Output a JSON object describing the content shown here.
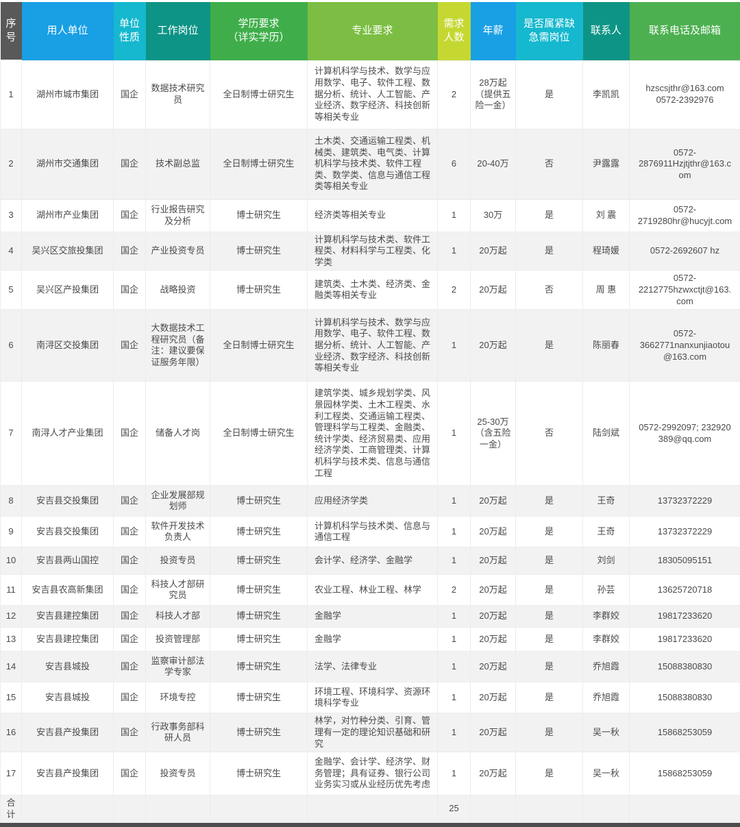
{
  "table": {
    "columns": [
      {
        "label": "序\n号",
        "color": "#595959"
      },
      {
        "label": "用人单位",
        "color": "#189fe4"
      },
      {
        "label": "单位\n性质",
        "color": "#15b8ce"
      },
      {
        "label": "工作岗位",
        "color": "#0e9486"
      },
      {
        "label": "学历要求\n（详实学历）",
        "color": "#3fae4a"
      },
      {
        "label": "专业要求",
        "color": "#7cbe43"
      },
      {
        "label": "需求\n人数",
        "color": "#c5d831"
      },
      {
        "label": "年薪",
        "color": "#189fe4"
      },
      {
        "label": "是否属紧缺\n急需岗位",
        "color": "#15b8ce"
      },
      {
        "label": "联系人",
        "color": "#0e9486"
      },
      {
        "label": "联系电话及邮箱",
        "color": "#4cb050"
      }
    ],
    "rows": [
      [
        "1",
        "湖州市城市集团",
        "国企",
        "数据技术研究员",
        "全日制博士研究生",
        "计算机科学与技术、数学与应用数学、电子、软件工程、数据分析、统计、人工智能、产业经济、数字经济、科技创新等相关专业",
        "2",
        "28万起\n（提供五险一金）",
        "是",
        "李凯凯",
        "hzscsjthr@163.com\n0572-2392976"
      ],
      [
        "2",
        "湖州市交通集团",
        "国企",
        "技术副总监",
        "全日制博士研究生",
        "土木类、交通运输工程类、机械类、建筑类、电气类、计算机科学与技术类、软件工程类、数学类、信息与通信工程类等相关专业",
        "6",
        "20-40万",
        "否",
        "尹露露",
        "0572-\n2876911Hzjtjthr@163.com"
      ],
      [
        "3",
        "湖州市产业集团",
        "国企",
        "行业报告研究及分析",
        "博士研究生",
        "经济类等相关专业",
        "1",
        "30万",
        "是",
        "刘 震",
        "0572-\n2719280hr@hucyjt.com"
      ],
      [
        "4",
        "吴兴区交旅投集团",
        "国企",
        "产业投资专员",
        "博士研究生",
        "计算机科学与技术类、软件工程类、材料科学与工程类、化学类",
        "1",
        "20万起",
        "是",
        "程琦媛",
        "0572-2692607 hz"
      ],
      [
        "5",
        "吴兴区产投集团",
        "国企",
        "战略投资",
        "博士研究生",
        "建筑类、土木类、经济类、金融类等相关专业",
        "2",
        "20万起",
        "否",
        "周 惠",
        "0572-\n2212775hzwxctjt@163.com"
      ],
      [
        "6",
        "南浔区交投集团",
        "国企",
        "大数据技术工程研究员（备注：建议要保证服务年限）",
        "全日制博士研究生",
        "计算机科学与技术、数学与应用数学、电子、软件工程、数据分析、统计、人工智能、产业经济、数字经济、科技创新等相关专业",
        "1",
        "20万起",
        "是",
        "陈丽春",
        "0572-\n3662771nanxunjiaotou@163.com"
      ],
      [
        "7",
        "南浔人才产业集团",
        "国企",
        "储备人才岗",
        "全日制博士研究生",
        "建筑学类、城乡规划学类、风景园林学类、土木工程类、水利工程类、交通运输工程类、管理科学与工程类、金融类、统计学类、经济贸易类、应用经济学类、工商管理类、计算机科学与技术类、信息与通信工程",
        "1",
        "25-30万\n（含五险一金）",
        "否",
        "陆剑斌",
        "0572-2992097; 232920389@qq.com"
      ],
      [
        "8",
        "安吉县交投集团",
        "国企",
        "企业发展部规划师",
        "博士研究生",
        "应用经济学类",
        "1",
        "20万起",
        "是",
        "王奇",
        "13732372229"
      ],
      [
        "9",
        "安吉县交投集团",
        "国企",
        "软件开发技术负责人",
        "博士研究生",
        "计算机科学与技术类、信息与通信工程",
        "1",
        "20万起",
        "是",
        "王奇",
        "13732372229"
      ],
      [
        "10",
        "安吉县两山国控",
        "国企",
        "投资专员",
        "博士研究生",
        "会计学、经济学、金融学",
        "1",
        "20万起",
        "是",
        "刘剑",
        "18305095151"
      ],
      [
        "11",
        "安吉县农高新集团",
        "国企",
        "科技人才部研究员",
        "博士研究生",
        "农业工程、林业工程、林学",
        "2",
        "20万起",
        "是",
        "孙芸",
        "13625720718"
      ],
      [
        "12",
        "安吉县建控集团",
        "国企",
        "科技人才部",
        "博士研究生",
        "金融学",
        "1",
        "20万起",
        "是",
        "李群姣",
        "19817233620"
      ],
      [
        "13",
        "安吉县建控集团",
        "国企",
        "投资管理部",
        "博士研究生",
        "金融学",
        "1",
        "20万起",
        "是",
        "李群姣",
        "19817233620"
      ],
      [
        "14",
        "安吉县城投",
        "国企",
        "监察审计部法学专家",
        "博士研究生",
        "法学、法律专业",
        "1",
        "20万起",
        "是",
        "乔旭霞",
        "15088380830"
      ],
      [
        "15",
        "安吉县城投",
        "国企",
        "环境专控",
        "博士研究生",
        "环境工程、环境科学、资源环境科学专业",
        "1",
        "20万起",
        "是",
        "乔旭霞",
        "15088380830"
      ],
      [
        "16",
        "安吉县产投集团",
        "国企",
        "行政事务部科研人员",
        "博士研究生",
        "林学，对竹种分类、引育、管理有一定的理论知识基础和研究",
        "1",
        "20万起",
        "是",
        "吴一秋",
        "15868253059"
      ],
      [
        "17",
        "安吉县产投集团",
        "国企",
        "投资专员",
        "博士研究生",
        "金融学、会计学、经济学、财务管理；具有证券、银行公司业务实习或从业经历优先考虑",
        "1",
        "20万起",
        "是",
        "吴一秋",
        "15868253059"
      ]
    ],
    "total_row": [
      "合\n计",
      "",
      "",
      "",
      "",
      "",
      "25",
      "",
      "",
      "",
      ""
    ],
    "colors": {
      "row_alt_background": "#f2f2f2",
      "header_text": "#ffffff",
      "body_text": "#4a4a4a",
      "grid_line": "#ececec",
      "bottom_bar": "#4d4d4d"
    }
  }
}
